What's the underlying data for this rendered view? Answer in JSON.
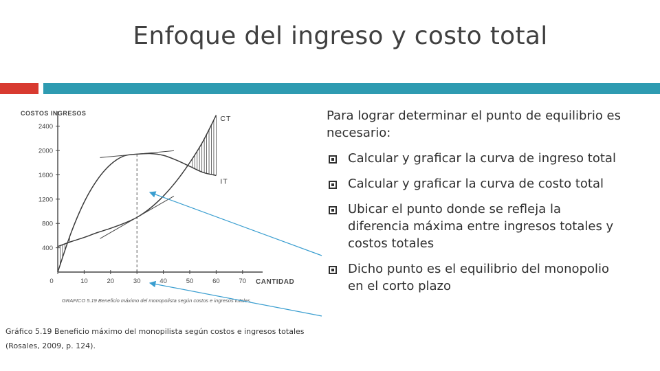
{
  "slide": {
    "title": "Enfoque del ingreso y costo total",
    "colors": {
      "accent_red": "#d83a30",
      "accent_teal": "#2e9bb1",
      "arrow": "#3a9ed0"
    },
    "intro": "Para lograr determinar el punto de equilibrio es necesario:",
    "bullets": [
      "Calcular y graficar la curva de ingreso total",
      "Calcular y graficar la curva de costo total",
      "Ubicar el punto donde se refleja la diferencia máxima entre ingresos totales y costos totales",
      "Dicho punto es el equilibrio del monopolio en el corto plazo"
    ],
    "caption": "Gráfico 5.19  Beneficio máximo del monopilista según costos e ingresos totales (Rosales, 2009, p. 124)."
  },
  "chart_data": {
    "type": "line",
    "ylabel": "COSTOS INGRESOS",
    "xlabel": "CANTIDAD",
    "xlim": [
      0,
      75
    ],
    "ylim": [
      0,
      2600
    ],
    "x_ticks": [
      "0",
      "10",
      "20",
      "30",
      "40",
      "50",
      "60",
      "70"
    ],
    "y_ticks": [
      "400",
      "800",
      "1200",
      "1600",
      "2000",
      "2400"
    ],
    "figure_caption": "GRAFICO 5.19 Beneficio máximo del monopolista según costos e ingresos totales.",
    "series": [
      {
        "name": "CT",
        "x": [
          0,
          5,
          10,
          15,
          20,
          25,
          30,
          35,
          40,
          45,
          50,
          55,
          60
        ],
        "y": [
          420,
          500,
          570,
          650,
          720,
          800,
          900,
          1050,
          1250,
          1500,
          1800,
          2150,
          2580
        ]
      },
      {
        "name": "IT",
        "x": [
          0,
          5,
          10,
          15,
          20,
          25,
          30,
          35,
          40,
          45,
          50,
          55,
          60
        ],
        "y": [
          0,
          640,
          1150,
          1520,
          1770,
          1910,
          1940,
          1950,
          1920,
          1840,
          1740,
          1640,
          1590
        ]
      }
    ],
    "annotations": [
      {
        "type": "vertical-dashed",
        "x": 30
      },
      {
        "type": "tangent",
        "at_series": "IT",
        "x": 30
      },
      {
        "type": "tangent",
        "at_series": "CT",
        "x": 30
      },
      {
        "type": "hatched-gap",
        "between": [
          "IT",
          "CT"
        ],
        "x_range": [
          0,
          5
        ]
      },
      {
        "type": "hatched-gap",
        "between": [
          "CT",
          "IT"
        ],
        "x_range": [
          51,
          60
        ]
      }
    ]
  }
}
